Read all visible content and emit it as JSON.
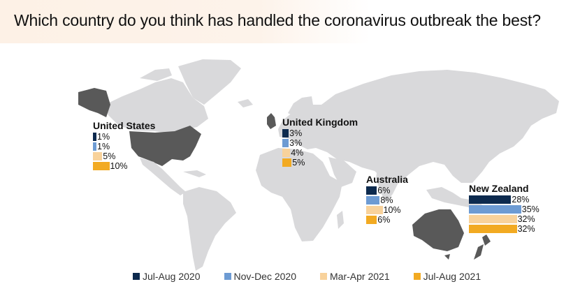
{
  "title": "Which country do you think has handled the coronavirus outbreak the best?",
  "colors": {
    "map_land": "#d9d9db",
    "map_highlight": "#595959",
    "series": [
      "#0d2a4e",
      "#6d9bd3",
      "#f8d29b",
      "#f2aa22"
    ]
  },
  "chart_data": {
    "type": "bar",
    "unit": "%",
    "series_names": [
      "Jul-Aug 2020",
      "Nov-Dec 2020",
      "Mar-Apr 2021",
      "Jul-Aug 2021"
    ],
    "countries": [
      {
        "name": "United States",
        "values": [
          1,
          1,
          5,
          10
        ],
        "labels": [
          "1%",
          "1%",
          "5%",
          "10%"
        ]
      },
      {
        "name": "United Kingdom",
        "values": [
          3,
          3,
          4,
          5
        ],
        "labels": [
          "3%",
          "3%",
          "4%",
          "5%"
        ]
      },
      {
        "name": "Australia",
        "values": [
          6,
          8,
          10,
          6
        ],
        "labels": [
          "6%",
          "8%",
          "10%",
          "6%"
        ]
      },
      {
        "name": "New Zealand",
        "values": [
          28,
          35,
          32,
          32
        ],
        "labels": [
          "28%",
          "35%",
          "32%",
          "32%"
        ]
      }
    ]
  },
  "legend": [
    {
      "label": "Jul-Aug 2020"
    },
    {
      "label": "Nov-Dec 2020"
    },
    {
      "label": "Mar-Apr 2021"
    },
    {
      "label": "Jul-Aug 2021"
    }
  ]
}
